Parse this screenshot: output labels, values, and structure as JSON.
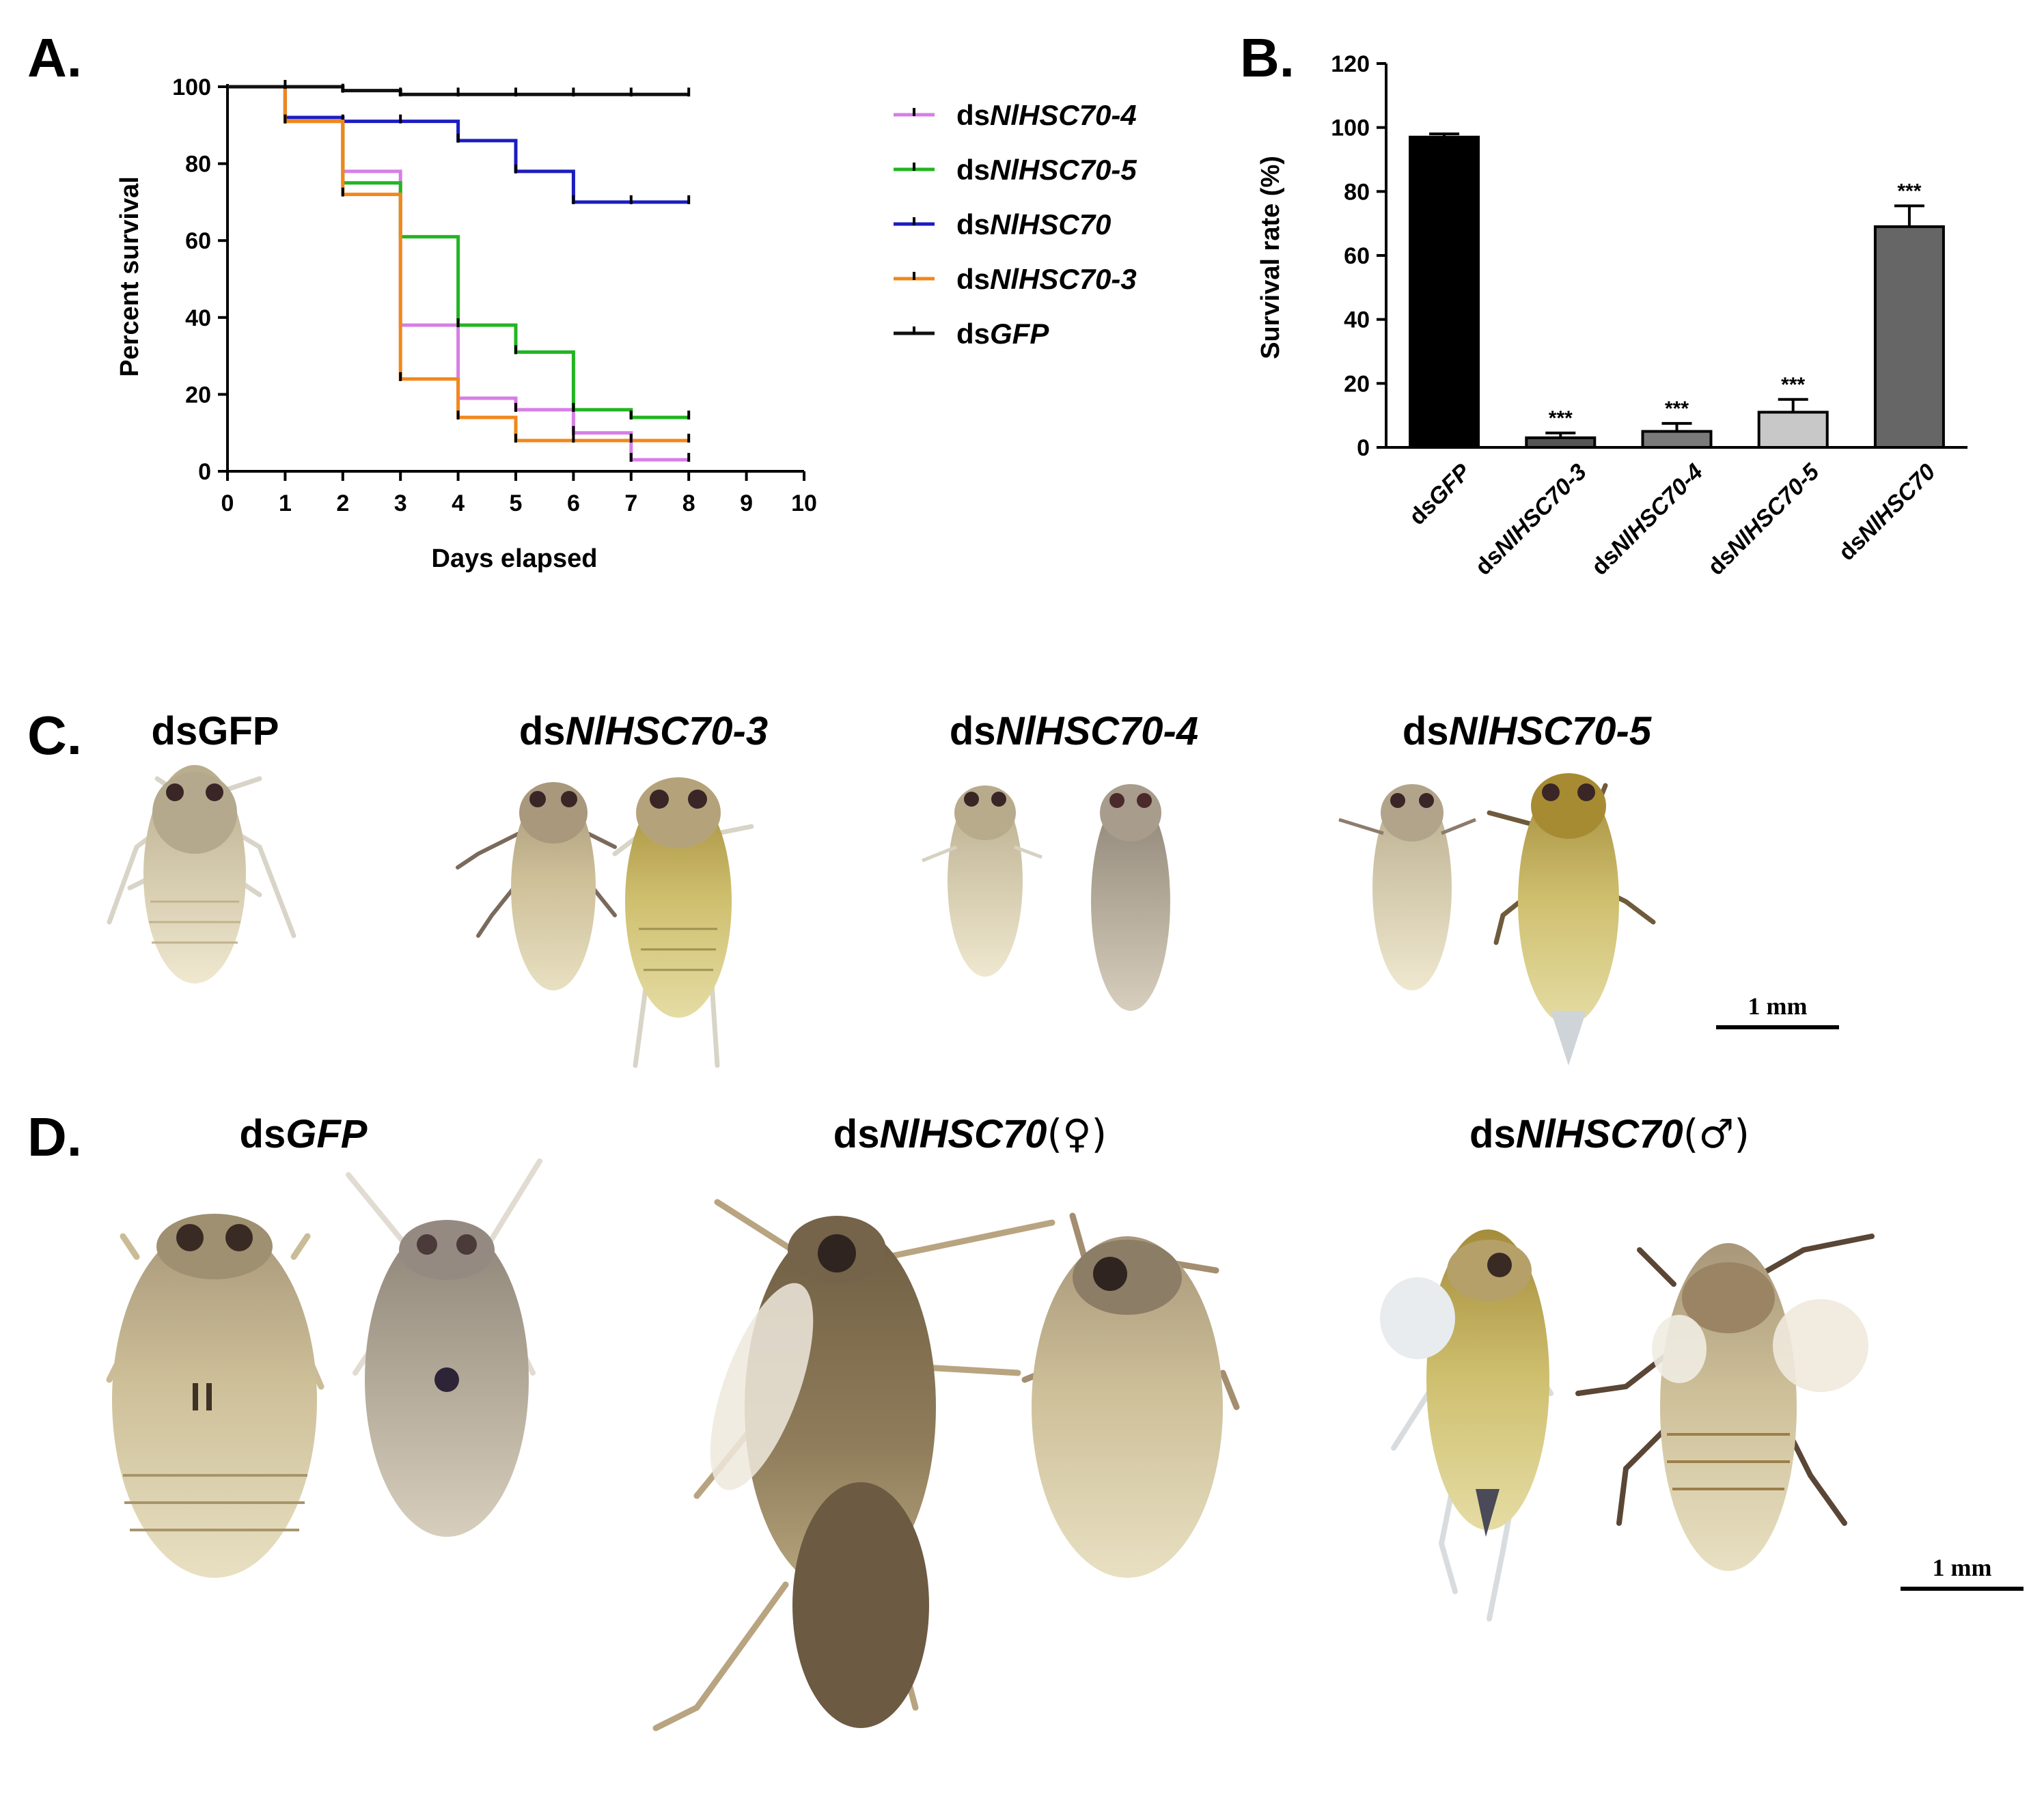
{
  "panels": {
    "a": "A.",
    "b": "B.",
    "c": "C.",
    "d": "D."
  },
  "colors": {
    "ds_nlhsc70_4": "#d77ee6",
    "ds_nlhsc70_5": "#22b522",
    "ds_nlhsc70": "#1c1cc0",
    "ds_nlhsc70_3": "#f2871b",
    "ds_gfp": "#111111",
    "bar_gfp": "#000000",
    "bar_3": "#555555",
    "bar_4": "#7a7a7a",
    "bar_5": "#c8c8c8",
    "bar_70": "#666666"
  },
  "chart_data": [
    {
      "type": "line",
      "subtype": "kaplan-meier step",
      "panel": "A.",
      "xlabel": "Days elapsed",
      "ylabel": "Percent survival",
      "xlim": [
        0,
        10
      ],
      "ylim": [
        0,
        100
      ],
      "x_ticks": [
        "0",
        "1",
        "2",
        "3",
        "4",
        "5",
        "6",
        "7",
        "8",
        "9",
        "10"
      ],
      "y_ticks": [
        "0",
        "20",
        "40",
        "60",
        "80",
        "100"
      ],
      "series": [
        {
          "name_prefix": "ds",
          "name_gene": "NlHSC70-4",
          "color_key": "ds_nlhsc70_4",
          "x": [
            0,
            1,
            2,
            3,
            4,
            5,
            6,
            7,
            8
          ],
          "values": [
            100,
            92,
            78,
            38,
            19,
            16,
            10,
            3,
            3
          ]
        },
        {
          "name_prefix": "ds",
          "name_gene": "NlHSC70-5",
          "color_key": "ds_nlhsc70_5",
          "x": [
            0,
            1,
            2,
            3,
            4,
            5,
            6,
            7,
            8
          ],
          "values": [
            100,
            91,
            75,
            61,
            38,
            31,
            16,
            14,
            14
          ]
        },
        {
          "name_prefix": "ds",
          "name_gene": "NlHSC70",
          "color_key": "ds_nlhsc70",
          "x": [
            0,
            1,
            2,
            3,
            4,
            5,
            6,
            7,
            8
          ],
          "values": [
            100,
            92,
            91,
            91,
            86,
            78,
            70,
            70,
            70
          ]
        },
        {
          "name_prefix": "ds",
          "name_gene": "NlHSC70-3",
          "color_key": "ds_nlhsc70_3",
          "x": [
            0,
            1,
            2,
            3,
            4,
            5,
            6,
            7,
            8
          ],
          "values": [
            100,
            91,
            72,
            24,
            14,
            8,
            8,
            8,
            8
          ]
        },
        {
          "name_prefix": "ds",
          "name_gene": "GFP",
          "color_key": "ds_gfp",
          "x": [
            0,
            1,
            2,
            3,
            4,
            5,
            6,
            7,
            8
          ],
          "values": [
            100,
            100,
            99,
            98,
            98,
            98,
            98,
            98,
            98
          ]
        }
      ]
    },
    {
      "type": "bar",
      "panel": "B.",
      "ylabel": "Survival rate (%)",
      "ylim": [
        0,
        120
      ],
      "y_ticks": [
        "0",
        "20",
        "40",
        "60",
        "80",
        "100",
        "120"
      ],
      "categories": [
        {
          "prefix": "ds",
          "gene": "GFP"
        },
        {
          "prefix": "ds",
          "gene": "NlHSC70-3"
        },
        {
          "prefix": "ds",
          "gene": "NlHSC70-4"
        },
        {
          "prefix": "ds",
          "gene": "NlHSC70-5"
        },
        {
          "prefix": "ds",
          "gene": "NlHSC70"
        }
      ],
      "values": [
        97,
        3,
        5,
        11,
        69
      ],
      "errors": [
        1,
        1.5,
        2.5,
        4,
        6.5
      ],
      "significance": [
        "",
        "***",
        "***",
        "***",
        "***"
      ],
      "bar_color_keys": [
        "bar_gfp",
        "bar_3",
        "bar_4",
        "bar_5",
        "bar_70"
      ]
    }
  ],
  "panel_c": {
    "labels": [
      {
        "prefix": "ds",
        "gene": "GFP"
      },
      {
        "prefix": "ds",
        "gene": "NlHSC70-3"
      },
      {
        "prefix": "ds",
        "gene": "NlHSC70-4"
      },
      {
        "prefix": "ds",
        "gene": "NlHSC70-5"
      }
    ],
    "scale_bar": "1 mm"
  },
  "panel_d": {
    "labels": [
      {
        "prefix": "ds",
        "gene": "GFP",
        "suffix": ""
      },
      {
        "prefix": "ds",
        "gene": "NlHSC70",
        "suffix": "(♀)"
      },
      {
        "prefix": "ds",
        "gene": "NlHSC70",
        "suffix": "(♂)"
      }
    ],
    "scale_bar": "1 mm"
  }
}
